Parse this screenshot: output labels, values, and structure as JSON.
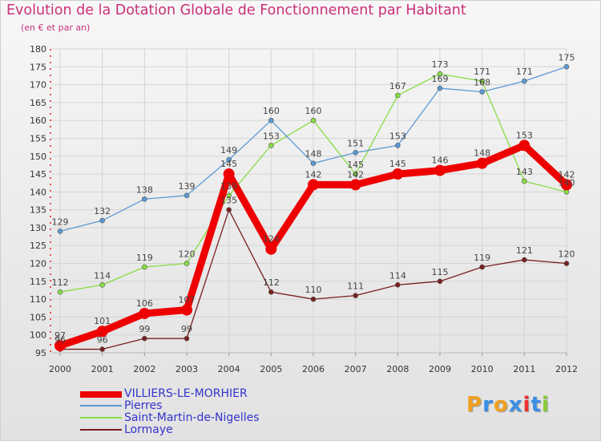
{
  "chart_data": {
    "type": "line",
    "title": "Evolution de la Dotation Globale de Fonctionnement par Habitant",
    "subtitle": "(en € et par an)",
    "categories": [
      "2000",
      "2001",
      "2002",
      "2003",
      "2004",
      "2005",
      "2006",
      "2007",
      "2008",
      "2009",
      "2010",
      "2011",
      "2012"
    ],
    "ylim": [
      95,
      180
    ],
    "yticks": [
      95,
      100,
      105,
      110,
      115,
      120,
      125,
      130,
      135,
      140,
      145,
      150,
      155,
      160,
      165,
      170,
      175,
      180
    ],
    "series": [
      {
        "name": "VILLIERS-LE-MORHIER",
        "color": "#ee0000",
        "values": [
          97,
          101,
          106,
          107,
          145,
          124,
          142,
          142,
          145,
          146,
          148,
          153,
          142
        ]
      },
      {
        "name": "Pierres",
        "color": "#5b9bd5",
        "values": [
          129,
          132,
          138,
          139,
          149,
          160,
          148,
          151,
          153,
          169,
          168,
          171,
          175
        ]
      },
      {
        "name": "Saint-Martin-de-Nigelles",
        "color": "#88dd44",
        "values": [
          112,
          114,
          119,
          120,
          139,
          153,
          160,
          145,
          167,
          173,
          171,
          143,
          140
        ]
      },
      {
        "name": "Lormaye",
        "color": "#7a1f1f",
        "values": [
          96,
          96,
          99,
          99,
          135,
          112,
          110,
          111,
          114,
          115,
          119,
          121,
          120
        ]
      }
    ]
  },
  "logo": {
    "letters": [
      "P",
      "r",
      "o",
      "x",
      "i",
      "t",
      "i"
    ],
    "colors": [
      "#f0a020",
      "#3a8ee6",
      "#f0a020",
      "#3a8ee6",
      "#ee3030",
      "#3a8ee6",
      "#88cc33"
    ]
  }
}
